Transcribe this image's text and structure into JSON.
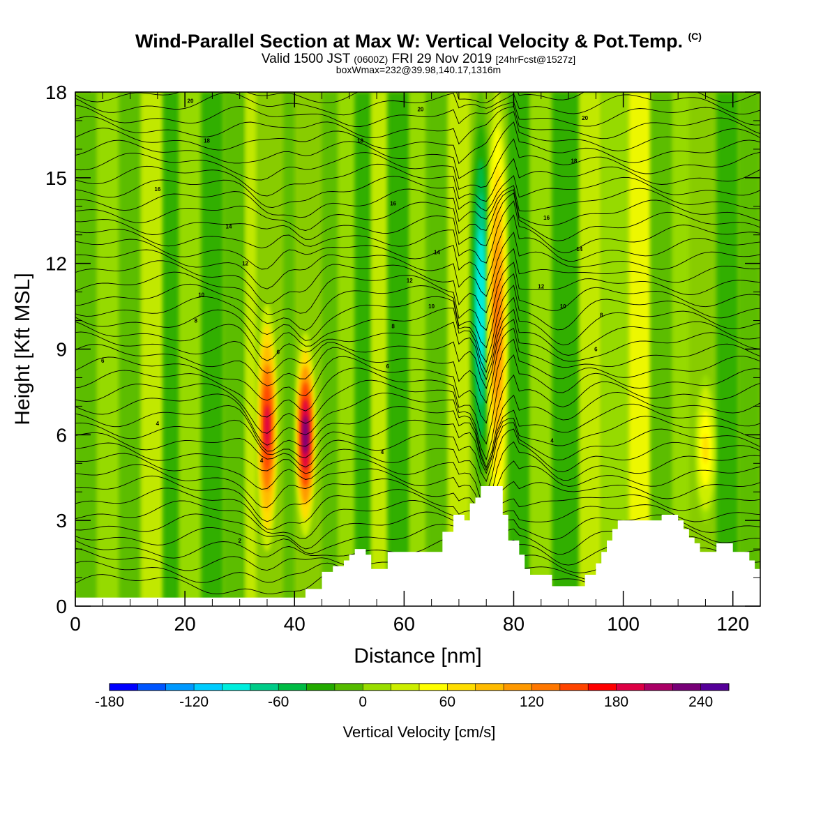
{
  "header": {
    "title": "Wind-Parallel Section at Max W: Vertical Velocity & Pot.Temp.",
    "copyright": "(C)",
    "valid_prefix": "Valid 1500 JST",
    "valid_utc": "(0600Z)",
    "valid_date": "FRI 29 Nov 2019",
    "forecast": "[24hrFcst@1527z]",
    "boxwmax": "boxWmax=232@39.98,140.17,1316m"
  },
  "chart_data": {
    "type": "heatmap",
    "xlabel": "Distance [nm]",
    "ylabel": "Height [Kft MSL]",
    "xlim": [
      0,
      125
    ],
    "ylim": [
      0,
      18
    ],
    "x_ticks": [
      0,
      20,
      40,
      60,
      80,
      100,
      120
    ],
    "y_ticks": [
      0,
      3,
      6,
      9,
      12,
      15,
      18
    ],
    "colorbar": {
      "label": "Vertical Velocity [cm/s]",
      "min": -180,
      "max": 260,
      "step": 20,
      "tick_labels": [
        -180,
        -120,
        -60,
        0,
        60,
        120,
        180,
        240
      ],
      "colors": [
        "#0000ff",
        "#0055ff",
        "#0099ff",
        "#00ccff",
        "#00eedd",
        "#00cc88",
        "#00bb44",
        "#22aa00",
        "#55bb00",
        "#99dd00",
        "#ccee00",
        "#ffff00",
        "#ffdd00",
        "#ffbb00",
        "#ff9900",
        "#ff7700",
        "#ff4400",
        "#ff0000",
        "#dd0044",
        "#aa0066",
        "#770077",
        "#550099"
      ]
    },
    "vertical_velocity_features": [
      {
        "x": 35,
        "y_range": [
          2,
          10.5
        ],
        "peak": 180
      },
      {
        "x": 42,
        "y_range": [
          2.5,
          9.5
        ],
        "peak": 232
      },
      {
        "x": 74,
        "y_range": [
          3.5,
          18
        ],
        "peak": -100
      },
      {
        "x": 77,
        "y_range": [
          2,
          18
        ],
        "peak": 120
      },
      {
        "x": 115,
        "y_range": [
          3,
          8
        ],
        "peak": 60
      }
    ],
    "terrain": [
      [
        40,
        0.3
      ],
      [
        42,
        0.6
      ],
      [
        45,
        1.2
      ],
      [
        47,
        1.4
      ],
      [
        49,
        1.6
      ],
      [
        50,
        1.8
      ],
      [
        51,
        2.0
      ],
      [
        53,
        1.8
      ],
      [
        54,
        1.3
      ],
      [
        57,
        1.9
      ],
      [
        65,
        1.9
      ],
      [
        67,
        2.6
      ],
      [
        69,
        3.2
      ],
      [
        71,
        3.0
      ],
      [
        72,
        3.6
      ],
      [
        73,
        3.8
      ],
      [
        74,
        4.2
      ],
      [
        76,
        4.2
      ],
      [
        78,
        3.2
      ],
      [
        79,
        2.3
      ],
      [
        81,
        1.8
      ],
      [
        82,
        1.3
      ],
      [
        83,
        1.1
      ],
      [
        86,
        1.1
      ],
      [
        87,
        0.7
      ],
      [
        91,
        0.7
      ],
      [
        93,
        1.1
      ],
      [
        95,
        1.5
      ],
      [
        96,
        1.9
      ],
      [
        97,
        2.3
      ],
      [
        98,
        2.7
      ],
      [
        99,
        3.0
      ],
      [
        107,
        3.2
      ],
      [
        110,
        3.0
      ],
      [
        111,
        2.7
      ],
      [
        112,
        2.4
      ],
      [
        113,
        2.2
      ],
      [
        114,
        1.9
      ],
      [
        116,
        1.9
      ],
      [
        117,
        2.2
      ],
      [
        119,
        2.2
      ],
      [
        120,
        1.9
      ],
      [
        122,
        1.9
      ],
      [
        123,
        1.6
      ],
      [
        124,
        1.3
      ],
      [
        125,
        1.3
      ]
    ],
    "isentrope_labels": [
      {
        "x": 21,
        "y": 17.7,
        "text": "20"
      },
      {
        "x": 63,
        "y": 17.4,
        "text": "20"
      },
      {
        "x": 93,
        "y": 17.1,
        "text": "20"
      },
      {
        "x": 24,
        "y": 16.3,
        "text": "18"
      },
      {
        "x": 52,
        "y": 16.3,
        "text": "18"
      },
      {
        "x": 91,
        "y": 15.6,
        "text": "18"
      },
      {
        "x": 15,
        "y": 14.6,
        "text": "16"
      },
      {
        "x": 58,
        "y": 14.1,
        "text": "16"
      },
      {
        "x": 86,
        "y": 13.6,
        "text": "16"
      },
      {
        "x": 28,
        "y": 13.3,
        "text": "14"
      },
      {
        "x": 66,
        "y": 12.4,
        "text": "14"
      },
      {
        "x": 92,
        "y": 12.5,
        "text": "14"
      },
      {
        "x": 31,
        "y": 12.0,
        "text": "12"
      },
      {
        "x": 61,
        "y": 11.4,
        "text": "12"
      },
      {
        "x": 85,
        "y": 11.2,
        "text": "12"
      },
      {
        "x": 23,
        "y": 10.9,
        "text": "10"
      },
      {
        "x": 65,
        "y": 10.5,
        "text": "10"
      },
      {
        "x": 89,
        "y": 10.5,
        "text": "10"
      },
      {
        "x": 22,
        "y": 10.0,
        "text": "8"
      },
      {
        "x": 58,
        "y": 9.8,
        "text": "8"
      },
      {
        "x": 96,
        "y": 10.2,
        "text": "8"
      },
      {
        "x": 5,
        "y": 8.6,
        "text": "6"
      },
      {
        "x": 37,
        "y": 8.9,
        "text": "6"
      },
      {
        "x": 57,
        "y": 8.4,
        "text": "6"
      },
      {
        "x": 95,
        "y": 9.0,
        "text": "6"
      },
      {
        "x": 15,
        "y": 6.4,
        "text": "4"
      },
      {
        "x": 56,
        "y": 5.4,
        "text": "4"
      },
      {
        "x": 87,
        "y": 5.8,
        "text": "4"
      },
      {
        "x": 34,
        "y": 5.1,
        "text": "4"
      },
      {
        "x": 30,
        "y": 2.3,
        "text": "2"
      }
    ]
  },
  "colors": {
    "background": "#ffffff",
    "contour": "#000000",
    "terrain_fill": "#ffffff"
  }
}
